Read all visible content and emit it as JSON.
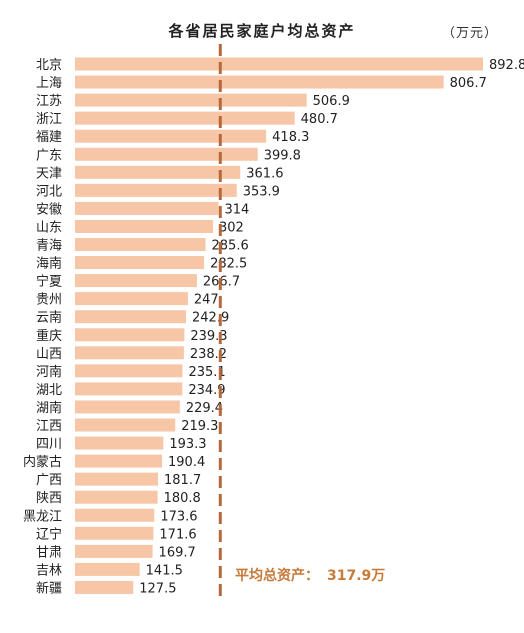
{
  "chart_data": {
    "type": "bar",
    "orientation": "horizontal",
    "title": "各省居民家庭户均总资产",
    "unit": "（万元）",
    "categories": [
      "北京",
      "上海",
      "江苏",
      "浙江",
      "福建",
      "广东",
      "天津",
      "河北",
      "安徽",
      "山东",
      "青海",
      "海南",
      "宁夏",
      "贵州",
      "云南",
      "重庆",
      "山西",
      "河南",
      "湖北",
      "湖南",
      "江西",
      "四川",
      "内蒙古",
      "广西",
      "陕西",
      "黑龙江",
      "辽宁",
      "甘肃",
      "吉林",
      "新疆"
    ],
    "values": [
      892.8,
      806.7,
      506.9,
      480.7,
      418.3,
      399.8,
      361.6,
      353.9,
      314,
      302,
      285.6,
      282.5,
      266.7,
      247,
      242.9,
      239.3,
      238.2,
      235.1,
      234.9,
      229.4,
      219.3,
      193.3,
      190.4,
      181.7,
      180.8,
      173.6,
      171.6,
      169.7,
      141.5,
      127.5
    ],
    "value_labels": [
      "892.8",
      "806.7",
      "506.9",
      "480.7",
      "418.3",
      "399.8",
      "361.6",
      "353.9",
      "314",
      "302",
      "285.6",
      "282.5",
      "266.7",
      "247",
      "242.9",
      "239.3",
      "238.2",
      "235.1",
      "234.9",
      "229.4",
      "219.3",
      "193.3",
      "190.4",
      "181.7",
      "180.8",
      "173.6",
      "171.6",
      "169.7",
      "141.5",
      "127.5"
    ],
    "average": 317.9,
    "average_label": "平均总资产：",
    "average_value_text": "317.9万",
    "bar_color": "#f6c6a6",
    "average_line_color": "#b5683a",
    "xlim": [
      0,
      1000
    ],
    "grid": false,
    "legend": "none"
  }
}
